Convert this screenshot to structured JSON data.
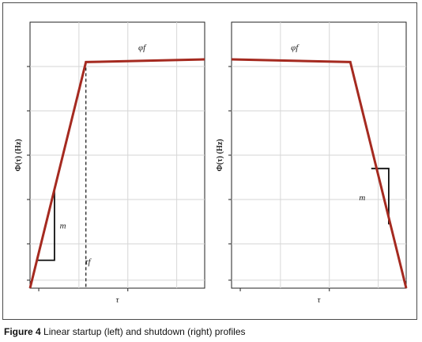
{
  "caption": {
    "figure_number": "Figure 4",
    "text": "Linear startup (left) and shutdown (right) profiles"
  },
  "colors": {
    "profile": "#a52a20",
    "grid": "#d6d6d6",
    "axis": "#222222",
    "frame": "#4a4a4a"
  },
  "chart_data": [
    {
      "type": "line",
      "panel": "left",
      "title": "",
      "xlabel": "τ",
      "ylabel": "Φ(τ) (Hz)",
      "grid": true,
      "x_ticks_labeled": false,
      "y_ticks_labeled": false,
      "xlim": [
        0,
        1
      ],
      "ylim": [
        0,
        1
      ],
      "series": [
        {
          "x": [
            0,
            0.32,
            1.0
          ],
          "y": [
            0,
            0.85,
            0.86
          ]
        }
      ],
      "annotations": {
        "top": "φf",
        "slope": "m",
        "marker": "τf"
      },
      "slope_triangle": {
        "x": [
          0.04,
          0.14
        ],
        "y": [
          0.105,
          0.37
        ]
      },
      "marker_line_x": 0.32
    },
    {
      "type": "line",
      "panel": "right",
      "title": "",
      "xlabel": "τ",
      "ylabel": "Φ(τ) (Hz)",
      "grid": true,
      "x_ticks_labeled": false,
      "y_ticks_labeled": false,
      "xlim": [
        0,
        1
      ],
      "ylim": [
        0,
        1
      ],
      "series": [
        {
          "x": [
            0,
            0.68,
            1.0
          ],
          "y": [
            0.86,
            0.85,
            0
          ]
        }
      ],
      "annotations": {
        "top": "φf",
        "slope": "m"
      },
      "slope_triangle": {
        "x": [
          0.8,
          0.9
        ],
        "y": [
          0.45,
          0.24
        ]
      }
    }
  ]
}
